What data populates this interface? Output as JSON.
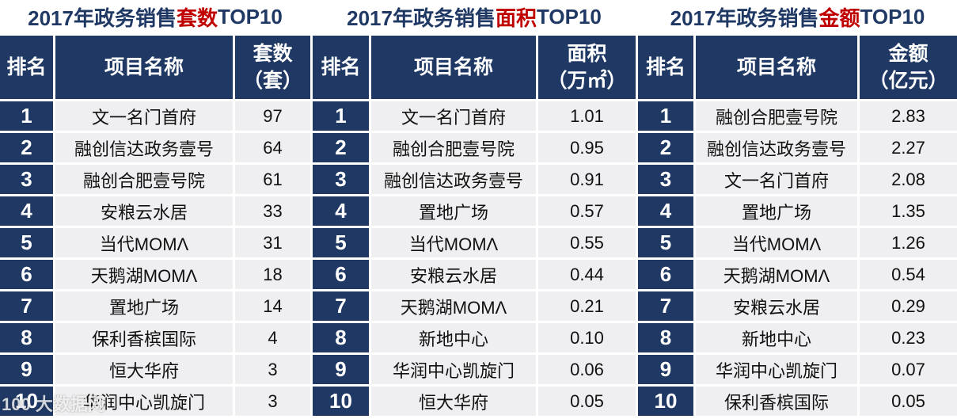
{
  "colors": {
    "header_bg": "#1f3864",
    "title_text": "#1f3864",
    "highlight": "#c00000",
    "cell_bg": "#efeff1"
  },
  "panels": [
    {
      "title_pre": "2017年政务销售",
      "title_hl": "套数",
      "title_post": "TOP10",
      "col_rank": "排名",
      "col_name": "项目名称",
      "col_val_1": "套数",
      "col_val_2": "（套）",
      "rows": [
        {
          "rank": "1",
          "name": "文一名门首府",
          "val": "97"
        },
        {
          "rank": "2",
          "name": "融创信达政务壹号",
          "val": "64"
        },
        {
          "rank": "3",
          "name": "融创合肥壹号院",
          "val": "61"
        },
        {
          "rank": "4",
          "name": "安粮云水居",
          "val": "33"
        },
        {
          "rank": "5",
          "name": "当代MOMΛ",
          "val": "31"
        },
        {
          "rank": "6",
          "name": "天鹅湖MOMΛ",
          "val": "18"
        },
        {
          "rank": "7",
          "name": "置地广场",
          "val": "14"
        },
        {
          "rank": "8",
          "name": "保利香槟国际",
          "val": "4"
        },
        {
          "rank": "9",
          "name": "恒大华府",
          "val": "3"
        },
        {
          "rank": "10",
          "name": "华润中心凯旋门",
          "val": "3"
        }
      ]
    },
    {
      "title_pre": "2017年政务销售",
      "title_hl": "面积",
      "title_post": "TOP10",
      "col_rank": "排名",
      "col_name": "项目名称",
      "col_val_1": "面积",
      "col_val_2": "（万㎡）",
      "rows": [
        {
          "rank": "1",
          "name": "文一名门首府",
          "val": "1.01"
        },
        {
          "rank": "2",
          "name": "融创合肥壹号院",
          "val": "0.95"
        },
        {
          "rank": "3",
          "name": "融创信达政务壹号",
          "val": "0.91"
        },
        {
          "rank": "4",
          "name": "置地广场",
          "val": "0.57"
        },
        {
          "rank": "5",
          "name": "当代MOMΛ",
          "val": "0.55"
        },
        {
          "rank": "6",
          "name": "安粮云水居",
          "val": "0.44"
        },
        {
          "rank": "7",
          "name": "天鹅湖MOMΛ",
          "val": "0.21"
        },
        {
          "rank": "8",
          "name": "新地中心",
          "val": "0.10"
        },
        {
          "rank": "9",
          "name": "华润中心凯旋门",
          "val": "0.06"
        },
        {
          "rank": "10",
          "name": "恒大华府",
          "val": "0.05"
        }
      ]
    },
    {
      "title_pre": "2017年政务销售",
      "title_hl": "金额",
      "title_post": "TOP10",
      "col_rank": "排名",
      "col_name": "项目名称",
      "col_val_1": "金额",
      "col_val_2": "（亿元）",
      "rows": [
        {
          "rank": "1",
          "name": "融创合肥壹号院",
          "val": "2.83"
        },
        {
          "rank": "2",
          "name": "融创信达政务壹号",
          "val": "2.27"
        },
        {
          "rank": "3",
          "name": "文一名门首府",
          "val": "2.08"
        },
        {
          "rank": "4",
          "name": "置地广场",
          "val": "1.35"
        },
        {
          "rank": "5",
          "name": "当代MOMΛ",
          "val": "1.26"
        },
        {
          "rank": "6",
          "name": "天鹅湖MOMΛ",
          "val": "0.54"
        },
        {
          "rank": "7",
          "name": "安粮云水居",
          "val": "0.29"
        },
        {
          "rank": "8",
          "name": "新地中心",
          "val": "0.23"
        },
        {
          "rank": "9",
          "name": "华润中心凯旋门",
          "val": "0.07"
        },
        {
          "rank": "10",
          "name": "保利香槟国际",
          "val": "0.05"
        }
      ]
    }
  ],
  "watermark": "100 大数据网",
  "chart_data": [
    {
      "type": "table",
      "title": "2017年政务销售套数TOP10",
      "columns": [
        "排名",
        "项目名称",
        "套数（套）"
      ],
      "rows": [
        [
          1,
          "文一名门首府",
          97
        ],
        [
          2,
          "融创信达政务壹号",
          64
        ],
        [
          3,
          "融创合肥壹号院",
          61
        ],
        [
          4,
          "安粮云水居",
          33
        ],
        [
          5,
          "当代MOMΛ",
          31
        ],
        [
          6,
          "天鹅湖MOMΛ",
          18
        ],
        [
          7,
          "置地广场",
          14
        ],
        [
          8,
          "保利香槟国际",
          4
        ],
        [
          9,
          "恒大华府",
          3
        ],
        [
          10,
          "华润中心凯旋门",
          3
        ]
      ]
    },
    {
      "type": "table",
      "title": "2017年政务销售面积TOP10",
      "columns": [
        "排名",
        "项目名称",
        "面积（万㎡）"
      ],
      "rows": [
        [
          1,
          "文一名门首府",
          1.01
        ],
        [
          2,
          "融创合肥壹号院",
          0.95
        ],
        [
          3,
          "融创信达政务壹号",
          0.91
        ],
        [
          4,
          "置地广场",
          0.57
        ],
        [
          5,
          "当代MOMΛ",
          0.55
        ],
        [
          6,
          "安粮云水居",
          0.44
        ],
        [
          7,
          "天鹅湖MOMΛ",
          0.21
        ],
        [
          8,
          "新地中心",
          0.1
        ],
        [
          9,
          "华润中心凯旋门",
          0.06
        ],
        [
          10,
          "恒大华府",
          0.05
        ]
      ]
    },
    {
      "type": "table",
      "title": "2017年政务销售金额TOP10",
      "columns": [
        "排名",
        "项目名称",
        "金额（亿元）"
      ],
      "rows": [
        [
          1,
          "融创合肥壹号院",
          2.83
        ],
        [
          2,
          "融创信达政务壹号",
          2.27
        ],
        [
          3,
          "文一名门首府",
          2.08
        ],
        [
          4,
          "置地广场",
          1.35
        ],
        [
          5,
          "当代MOMΛ",
          1.26
        ],
        [
          6,
          "天鹅湖MOMΛ",
          0.54
        ],
        [
          7,
          "安粮云水居",
          0.29
        ],
        [
          8,
          "新地中心",
          0.23
        ],
        [
          9,
          "华润中心凯旋门",
          0.07
        ],
        [
          10,
          "保利香槟国际",
          0.05
        ]
      ]
    }
  ]
}
